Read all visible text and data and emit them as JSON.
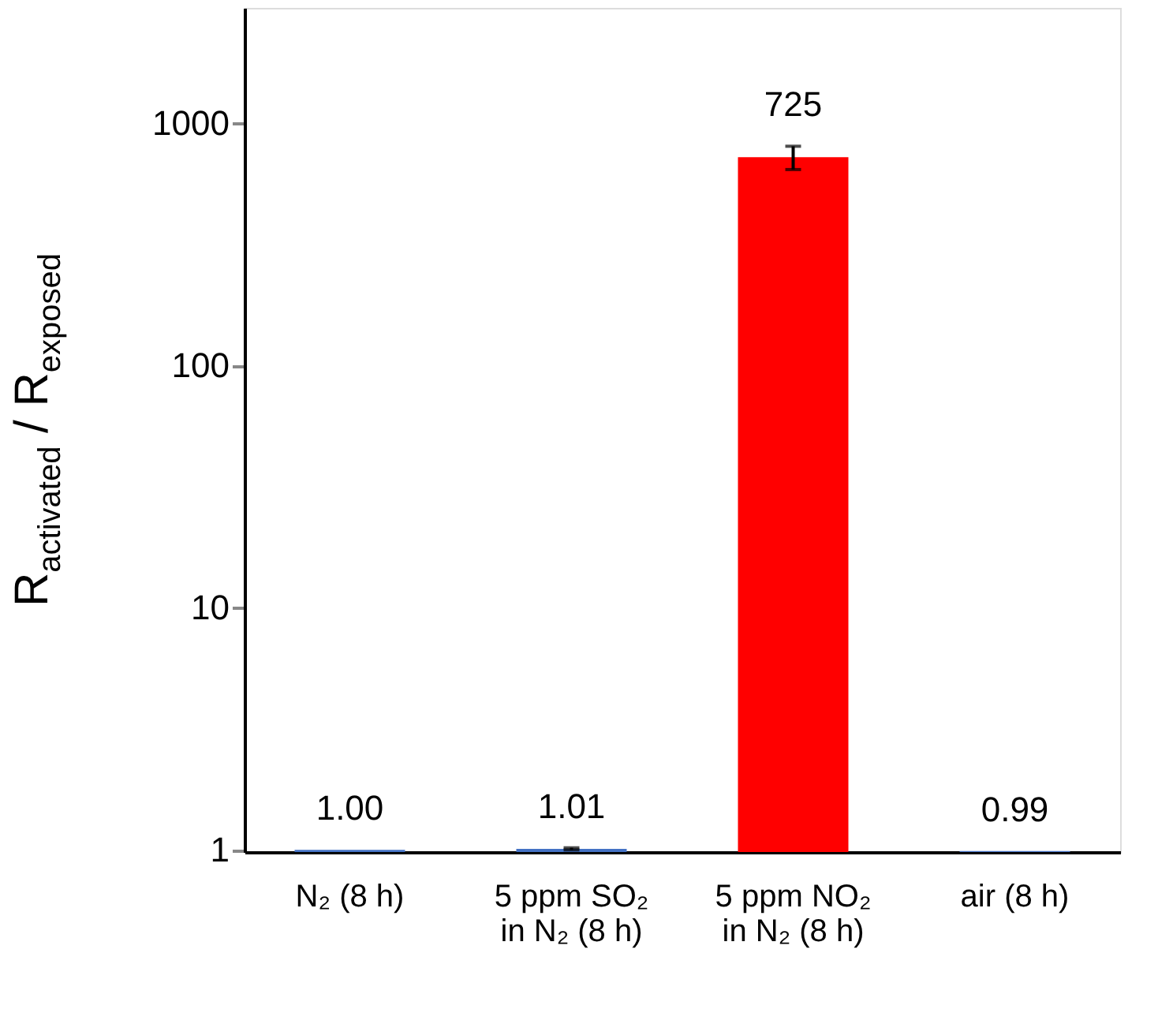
{
  "chart_data": {
    "type": "bar",
    "ylabel": "R$_{activated}$ / R$_{exposed}$",
    "categories": [
      "N₂ (8 h)",
      "5 ppm SO₂\nin N₂ (8 h)",
      "5 ppm NO₂\nin N₂ (8 h)",
      "air (8 h)"
    ],
    "values": [
      1.0,
      1.01,
      725,
      0.99
    ],
    "value_labels": [
      "1.00",
      "1.01",
      "725",
      "0.99"
    ],
    "errors": [
      null,
      0.01,
      80,
      null
    ],
    "colors": [
      "#4472c4",
      "#4472c4",
      "#ff0000",
      "#4472c4"
    ],
    "log": true,
    "ylim": [
      0.98,
      3000
    ],
    "yticks": [
      {
        "value": 1,
        "label": "1"
      },
      10,
      100,
      1000
    ],
    "grid": false
  }
}
